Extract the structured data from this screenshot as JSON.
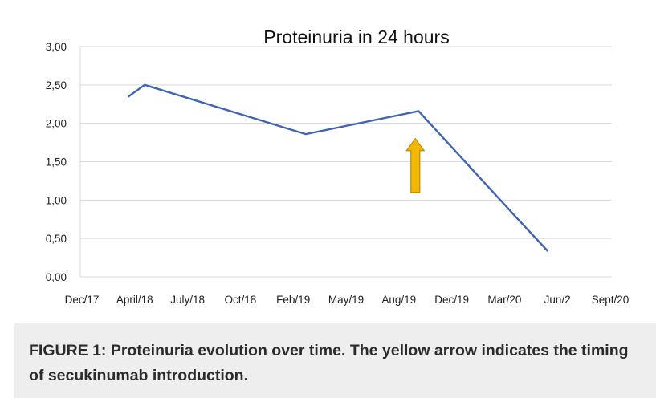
{
  "chart_data": {
    "type": "line",
    "title": "Proteinuria in 24 hours",
    "xlabel": "",
    "ylabel": "",
    "ylim": [
      0,
      3
    ],
    "y_ticks": [
      "0,00",
      "0,50",
      "1,00",
      "1,50",
      "2,00",
      "2,50",
      "3,00"
    ],
    "y_tick_values": [
      0,
      0.5,
      1,
      1.5,
      2,
      2.5,
      3
    ],
    "x_ticks": [
      "Dec/17",
      "April/18",
      "July/18",
      "Oct/18",
      "Feb/19",
      "May/19",
      "Aug/19",
      "Dec/19",
      "Mar/20",
      "Jun/2",
      "Sept/20"
    ],
    "grid": true,
    "line_color": "#3e64b3",
    "series": [
      {
        "x": [
          "2018-03",
          "2018-04",
          "2019-02",
          "2019-09",
          "2020-03",
          "2020-05"
        ],
        "values": [
          2.35,
          2.5,
          1.86,
          2.16,
          0.79,
          0.34
        ]
      }
    ],
    "annotation": {
      "type": "arrow",
      "x": "2019-09",
      "y_from": 1.1,
      "y_to": 1.8,
      "fill": "#f5b800",
      "stroke": "#c08a00"
    }
  },
  "caption": "FIGURE 1: Proteinuria evolution over time. The yellow arrow indicates the timing of secukinumab introduction.",
  "colors": {
    "caption_bg": "#eeeeee",
    "grid": "#d9d9d9"
  }
}
